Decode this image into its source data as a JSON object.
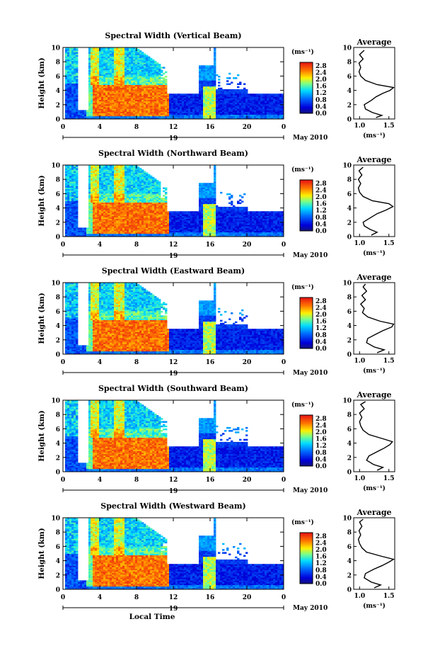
{
  "figure": {
    "date_label": "May 2010",
    "xlabel": "Local Time",
    "ylabel": "Height (km)",
    "units_label": "(ms⁻¹)",
    "avg_title": "Average",
    "avg_xlabel": "(ms⁻¹)"
  },
  "chart_data": [
    {
      "type": "heatmap",
      "title": "Spectral Width (Vertical Beam)",
      "xlabel": "",
      "ylabel": "Height (km)",
      "x_ticks": [
        "0",
        "4",
        "8",
        "12",
        "16",
        "20",
        "0"
      ],
      "x_range": [
        0,
        24
      ],
      "day_label": "19",
      "y_ticks": [
        "0",
        "2",
        "4",
        "6",
        "8",
        "10"
      ],
      "y_range": [
        0,
        10
      ],
      "colorbar": {
        "ticks": [
          "0.0",
          "0.4",
          "0.8",
          "1.2",
          "1.6",
          "2.0",
          "2.4",
          "2.8"
        ],
        "range": [
          0,
          3.0
        ]
      },
      "average": {
        "title": "Average",
        "xlabel": "(ms⁻¹)",
        "x_ticks": [
          "1.0",
          "1.5"
        ],
        "x_range": [
          0.9,
          1.6
        ],
        "y_ticks": [
          "0",
          "2",
          "4",
          "6",
          "8",
          "10"
        ],
        "profile": [
          [
            1.28,
            0.2
          ],
          [
            1.38,
            0.5
          ],
          [
            1.22,
            0.9
          ],
          [
            1.1,
            1.4
          ],
          [
            1.08,
            2.0
          ],
          [
            1.2,
            2.6
          ],
          [
            1.28,
            3.1
          ],
          [
            1.4,
            3.6
          ],
          [
            1.52,
            4.0
          ],
          [
            1.58,
            4.4
          ],
          [
            1.3,
            4.8
          ],
          [
            1.1,
            5.4
          ],
          [
            1.02,
            6.0
          ],
          [
            0.99,
            6.6
          ],
          [
            1.02,
            7.2
          ],
          [
            0.99,
            7.8
          ],
          [
            1.06,
            8.4
          ],
          [
            1.0,
            9.0
          ],
          [
            1.08,
            9.6
          ]
        ]
      }
    },
    {
      "type": "heatmap",
      "title": "Spectral Width (Northward Beam)",
      "xlabel": "",
      "ylabel": "Height (km)",
      "x_ticks": [
        "0",
        "4",
        "8",
        "12",
        "16",
        "20",
        "0"
      ],
      "x_range": [
        0,
        24
      ],
      "day_label": "19",
      "y_ticks": [
        "0",
        "2",
        "4",
        "6",
        "8",
        "10"
      ],
      "y_range": [
        0,
        10
      ],
      "colorbar": {
        "ticks": [
          "0.0",
          "0.4",
          "0.8",
          "1.2",
          "1.6",
          "2.0",
          "2.4",
          "2.8"
        ],
        "range": [
          0,
          3.0
        ]
      },
      "average": {
        "title": "Average",
        "xlabel": "(ms⁻¹)",
        "x_ticks": [
          "1.0",
          "1.5"
        ],
        "x_range": [
          0.9,
          1.6
        ],
        "y_ticks": [
          "0",
          "2",
          "4",
          "6",
          "8",
          "10"
        ],
        "profile": [
          [
            1.2,
            0.2
          ],
          [
            1.3,
            0.6
          ],
          [
            1.18,
            1.0
          ],
          [
            1.08,
            1.5
          ],
          [
            1.06,
            2.0
          ],
          [
            1.18,
            2.6
          ],
          [
            1.3,
            3.2
          ],
          [
            1.45,
            3.7
          ],
          [
            1.57,
            4.2
          ],
          [
            1.5,
            4.6
          ],
          [
            1.22,
            5.0
          ],
          [
            1.06,
            5.6
          ],
          [
            1.0,
            6.2
          ],
          [
            0.98,
            6.8
          ],
          [
            1.02,
            7.4
          ],
          [
            0.98,
            8.0
          ],
          [
            1.04,
            8.6
          ],
          [
            0.99,
            9.2
          ],
          [
            1.06,
            9.7
          ]
        ]
      }
    },
    {
      "type": "heatmap",
      "title": "Spectral Width (Eastward Beam)",
      "xlabel": "",
      "ylabel": "Height (km)",
      "x_ticks": [
        "0",
        "4",
        "8",
        "12",
        "16",
        "20",
        "0"
      ],
      "x_range": [
        0,
        24
      ],
      "day_label": "19",
      "y_ticks": [
        "0",
        "2",
        "4",
        "6",
        "8",
        "10"
      ],
      "y_range": [
        0,
        10
      ],
      "colorbar": {
        "ticks": [
          "0.0",
          "0.4",
          "0.8",
          "1.2",
          "1.6",
          "2.0",
          "2.4",
          "2.8"
        ],
        "range": [
          0,
          3.0
        ]
      },
      "average": {
        "title": "Average",
        "xlabel": "(ms⁻¹)",
        "x_ticks": [
          "1.0",
          "1.5"
        ],
        "x_range": [
          0.9,
          1.6
        ],
        "y_ticks": [
          "0",
          "2",
          "4",
          "6",
          "8",
          "10"
        ],
        "profile": [
          [
            1.3,
            0.2
          ],
          [
            1.42,
            0.6
          ],
          [
            1.25,
            1.0
          ],
          [
            1.12,
            1.6
          ],
          [
            1.14,
            2.2
          ],
          [
            1.28,
            2.8
          ],
          [
            1.4,
            3.3
          ],
          [
            1.55,
            3.8
          ],
          [
            1.58,
            4.2
          ],
          [
            1.35,
            4.6
          ],
          [
            1.14,
            5.2
          ],
          [
            1.05,
            5.8
          ],
          [
            1.08,
            6.4
          ],
          [
            1.02,
            7.0
          ],
          [
            1.1,
            7.6
          ],
          [
            1.04,
            8.2
          ],
          [
            1.12,
            8.8
          ],
          [
            1.06,
            9.4
          ],
          [
            1.1,
            9.8
          ]
        ]
      }
    },
    {
      "type": "heatmap",
      "title": "Spectral Width (Southward Beam)",
      "xlabel": "",
      "ylabel": "Height (km)",
      "x_ticks": [
        "0",
        "4",
        "8",
        "12",
        "16",
        "20",
        "0"
      ],
      "x_range": [
        0,
        24
      ],
      "day_label": "19",
      "y_ticks": [
        "0",
        "2",
        "4",
        "6",
        "8",
        "10"
      ],
      "y_range": [
        0,
        10
      ],
      "colorbar": {
        "ticks": [
          "0.0",
          "0.4",
          "0.8",
          "1.2",
          "1.6",
          "2.0",
          "2.4",
          "2.8"
        ],
        "range": [
          0,
          3.0
        ]
      },
      "average": {
        "title": "Average",
        "xlabel": "(ms⁻¹)",
        "x_ticks": [
          "1.0",
          "1.5"
        ],
        "x_range": [
          0.9,
          1.6
        ],
        "y_ticks": [
          "0",
          "2",
          "4",
          "6",
          "8",
          "10"
        ],
        "profile": [
          [
            1.3,
            0.2
          ],
          [
            1.4,
            0.6
          ],
          [
            1.24,
            1.0
          ],
          [
            1.12,
            1.6
          ],
          [
            1.16,
            2.2
          ],
          [
            1.3,
            2.8
          ],
          [
            1.42,
            3.3
          ],
          [
            1.52,
            3.8
          ],
          [
            1.56,
            4.2
          ],
          [
            1.4,
            4.6
          ],
          [
            1.16,
            5.2
          ],
          [
            1.06,
            5.8
          ],
          [
            1.02,
            6.4
          ],
          [
            1.0,
            7.0
          ],
          [
            1.04,
            7.6
          ],
          [
            1.0,
            8.2
          ],
          [
            1.08,
            8.8
          ],
          [
            1.02,
            9.4
          ],
          [
            1.1,
            9.8
          ]
        ]
      }
    },
    {
      "type": "heatmap",
      "title": "Spectral Width (Westward Beam)",
      "xlabel": "Local Time",
      "ylabel": "Height (km)",
      "x_ticks": [
        "0",
        "4",
        "8",
        "12",
        "16",
        "20",
        "0"
      ],
      "x_range": [
        0,
        24
      ],
      "day_label": "19",
      "y_ticks": [
        "0",
        "2",
        "4",
        "6",
        "8",
        "10"
      ],
      "y_range": [
        0,
        10
      ],
      "colorbar": {
        "ticks": [
          "0.0",
          "0.4",
          "0.8",
          "1.2",
          "1.6",
          "2.0",
          "2.4",
          "2.8"
        ],
        "range": [
          0,
          3.0
        ]
      },
      "average": {
        "title": "Average",
        "xlabel": "(ms⁻¹)",
        "x_ticks": [
          "1.0",
          "1.5"
        ],
        "x_range": [
          0.9,
          1.6
        ],
        "y_ticks": [
          "0",
          "2",
          "4",
          "6",
          "8",
          "10"
        ],
        "profile": [
          [
            1.25,
            0.2
          ],
          [
            1.36,
            0.6
          ],
          [
            1.2,
            1.0
          ],
          [
            1.08,
            1.6
          ],
          [
            1.1,
            2.2
          ],
          [
            1.24,
            2.8
          ],
          [
            1.38,
            3.3
          ],
          [
            1.5,
            3.8
          ],
          [
            1.58,
            4.2
          ],
          [
            1.38,
            4.6
          ],
          [
            1.12,
            5.2
          ],
          [
            1.04,
            5.8
          ],
          [
            1.0,
            6.4
          ],
          [
            0.98,
            7.0
          ],
          [
            1.02,
            7.6
          ],
          [
            0.99,
            8.2
          ],
          [
            1.04,
            8.8
          ],
          [
            1.0,
            9.4
          ],
          [
            1.06,
            9.8
          ]
        ]
      }
    }
  ]
}
